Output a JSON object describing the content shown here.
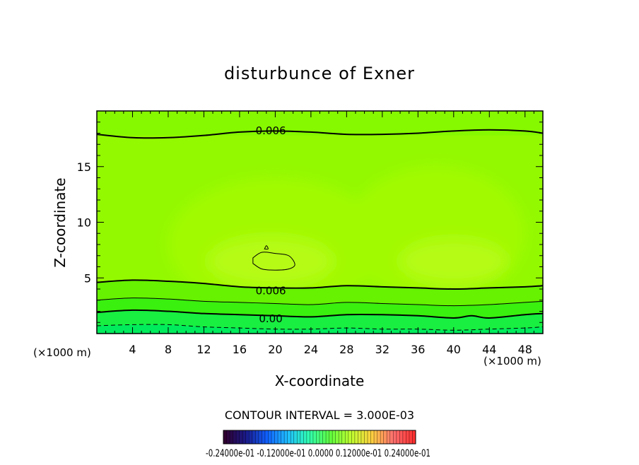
{
  "chart_data": {
    "type": "contour",
    "title": "disturbunce of Exner",
    "xlabel": "X-coordinate",
    "ylabel": "Z-coordinate",
    "x_unit": "(×1000 m)",
    "xlim": [
      0,
      50
    ],
    "ylim": [
      0,
      20
    ],
    "x_ticks": [
      4,
      8,
      12,
      16,
      20,
      24,
      28,
      32,
      36,
      40,
      44,
      48
    ],
    "y_ticks": [
      5,
      10,
      15
    ],
    "contour_interval_text": "CONTOUR INTERVAL = 3.000E-03",
    "contour_labels": [
      {
        "text": "0.006",
        "x": 19.5,
        "z": 18.3
      },
      {
        "text": "0.006",
        "x": 19.5,
        "z": 3.9
      },
      {
        "text": "0.00",
        "x": 19.5,
        "z": 1.4
      }
    ],
    "contour_lines": [
      {
        "style": "solid",
        "weight": "bold",
        "x": [
          0,
          4,
          8,
          12,
          16,
          20,
          24,
          28,
          32,
          36,
          40,
          44,
          48,
          50
        ],
        "z": [
          17.9,
          17.6,
          17.6,
          17.8,
          18.1,
          18.2,
          18.1,
          17.9,
          17.9,
          18.0,
          18.2,
          18.3,
          18.2,
          18.0
        ]
      },
      {
        "style": "solid",
        "weight": "bold",
        "x": [
          0,
          4,
          8,
          12,
          16,
          20,
          24,
          28,
          32,
          36,
          40,
          44,
          48,
          50
        ],
        "z": [
          4.6,
          4.8,
          4.7,
          4.5,
          4.2,
          4.1,
          4.1,
          4.3,
          4.2,
          4.1,
          4.0,
          4.1,
          4.2,
          4.3
        ]
      },
      {
        "style": "solid",
        "weight": "thin",
        "x": [
          0,
          4,
          8,
          12,
          16,
          20,
          24,
          28,
          32,
          36,
          40,
          44,
          48,
          50
        ],
        "z": [
          3.0,
          3.2,
          3.1,
          2.9,
          2.8,
          2.7,
          2.6,
          2.8,
          2.7,
          2.6,
          2.5,
          2.6,
          2.8,
          2.9
        ]
      },
      {
        "style": "solid",
        "weight": "bold",
        "x": [
          0,
          4,
          8,
          12,
          16,
          20,
          24,
          28,
          32,
          36,
          40,
          42,
          44,
          48,
          50
        ],
        "z": [
          1.9,
          2.1,
          2.0,
          1.8,
          1.7,
          1.6,
          1.5,
          1.7,
          1.7,
          1.6,
          1.4,
          1.6,
          1.4,
          1.7,
          1.8
        ]
      },
      {
        "style": "dashed",
        "weight": "thin",
        "x": [
          0,
          4,
          8,
          12,
          16,
          20,
          24,
          28,
          32,
          36,
          40,
          44,
          48,
          50
        ],
        "z": [
          0.7,
          0.8,
          0.8,
          0.6,
          0.5,
          0.4,
          0.4,
          0.5,
          0.4,
          0.4,
          0.3,
          0.4,
          0.5,
          0.6
        ]
      }
    ],
    "closed_contours": [
      {
        "style": "solid",
        "weight": "thin",
        "x": [
          17.5,
          18.5,
          20.0,
          21.5,
          22.2,
          21.5,
          20.0,
          18.5,
          17.5
        ],
        "z": [
          6.8,
          7.3,
          7.2,
          7.0,
          6.2,
          5.8,
          5.7,
          5.8,
          6.3
        ]
      },
      {
        "style": "solid",
        "weight": "thin",
        "x": [
          18.8,
          19.2,
          19.0,
          18.8
        ],
        "z": [
          7.6,
          7.6,
          7.9,
          7.6
        ]
      }
    ],
    "shading_regions": [
      {
        "band": "core",
        "x": 19.5,
        "z": 6.5,
        "rx": 7,
        "rz": 2.2
      },
      {
        "band": "core",
        "x": 40.0,
        "z": 6.5,
        "rx": 6,
        "rz": 2.0
      },
      {
        "band": "mid",
        "x": 20.0,
        "z": 8.0,
        "rx": 12,
        "rz": 6.0
      },
      {
        "band": "mid",
        "x": 38.0,
        "z": 9.0,
        "rx": 10,
        "rz": 6.0
      }
    ],
    "colors": {
      "top_band": "#86f800",
      "upper_band": "#93f900",
      "mid_band": "#a2fa00",
      "core_band": "#b6fb14",
      "low_band_1": "#66f200",
      "low_band_2": "#3af00e",
      "low_band_3": "#18ef40",
      "bottom_band": "#00ec5c"
    },
    "colorbar": {
      "labels_text": "-0.24000e-01   -0.12000e-01   0.0000   0.12000e-01   0.24000e-01",
      "label_values": [
        -0.024,
        -0.012,
        0.0,
        0.012,
        0.024
      ],
      "range": [
        -0.024,
        0.024
      ],
      "colors": [
        "#300030",
        "#1a1a8a",
        "#1060ff",
        "#20c0ff",
        "#30ffb0",
        "#60ff40",
        "#c0ff30",
        "#ffd040",
        "#ff7070",
        "#ff3030"
      ]
    }
  }
}
